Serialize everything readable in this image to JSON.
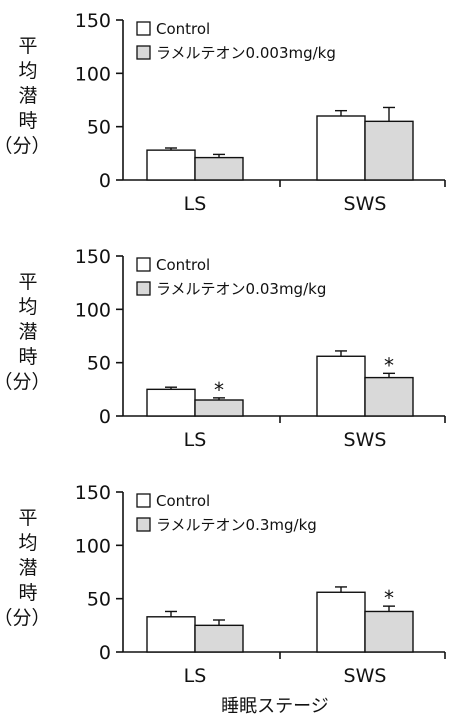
{
  "xlabel": "睡眠ステージ",
  "ylabel_chars": [
    "平",
    "均",
    "潜",
    "時",
    "（分）"
  ],
  "colors": {
    "control": "#ffffff",
    "ramelteon": "#d9d9d9",
    "stroke": "#111111"
  },
  "chart_data": [
    {
      "type": "bar",
      "categories": [
        "LS",
        "SWS"
      ],
      "ylim": [
        0,
        150
      ],
      "yticks": [
        "0",
        "50",
        "100",
        "150"
      ],
      "ylabel": "平均潜時（分）",
      "series": [
        {
          "name": "Control",
          "values": [
            28,
            60
          ],
          "errors": [
            2,
            5
          ],
          "significance": [
            "",
            ""
          ]
        },
        {
          "name": "ラメルテオン0.003mg/kg",
          "values": [
            21,
            55
          ],
          "errors": [
            3,
            13
          ],
          "significance": [
            "",
            ""
          ]
        }
      ]
    },
    {
      "type": "bar",
      "categories": [
        "LS",
        "SWS"
      ],
      "ylim": [
        0,
        150
      ],
      "yticks": [
        "0",
        "50",
        "100",
        "150"
      ],
      "ylabel": "平均潜時（分）",
      "series": [
        {
          "name": "Control",
          "values": [
            25,
            56
          ],
          "errors": [
            2,
            5
          ],
          "significance": [
            "",
            ""
          ]
        },
        {
          "name": "ラメルテオン0.03mg/kg",
          "values": [
            15,
            36
          ],
          "errors": [
            2,
            4
          ],
          "significance": [
            "*",
            "*"
          ]
        }
      ]
    },
    {
      "type": "bar",
      "categories": [
        "LS",
        "SWS"
      ],
      "ylim": [
        0,
        150
      ],
      "yticks": [
        "0",
        "50",
        "100",
        "150"
      ],
      "ylabel": "平均潜時（分）",
      "series": [
        {
          "name": "Control",
          "values": [
            33,
            56
          ],
          "errors": [
            5,
            5
          ],
          "significance": [
            "",
            ""
          ]
        },
        {
          "name": "ラメルテオン0.3mg/kg",
          "values": [
            25,
            38
          ],
          "errors": [
            5,
            5
          ],
          "significance": [
            "",
            "*"
          ]
        }
      ]
    }
  ]
}
